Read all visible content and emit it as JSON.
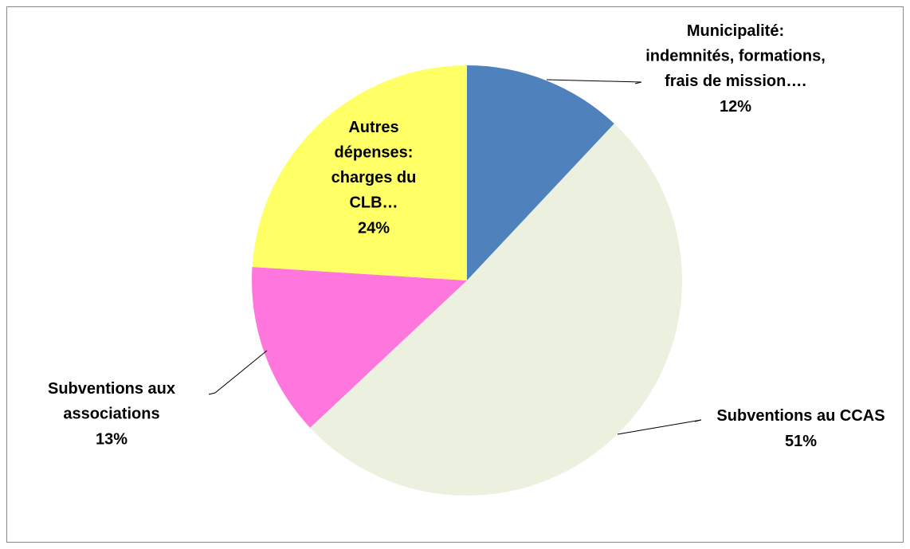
{
  "chart_data": {
    "type": "pie",
    "categories": [
      "Municipalité: indemnités, formations, frais de mission….",
      "Subventions au CCAS",
      "Subventions aux associations",
      "Autres dépenses: charges du CLB…"
    ],
    "values": [
      12,
      51,
      13,
      24
    ],
    "value_labels": [
      "12%",
      "51%",
      "13%",
      "24%"
    ],
    "colors": [
      "#4f81bd",
      "#ebf1de",
      "#ff77dd",
      "#ffff66"
    ]
  }
}
